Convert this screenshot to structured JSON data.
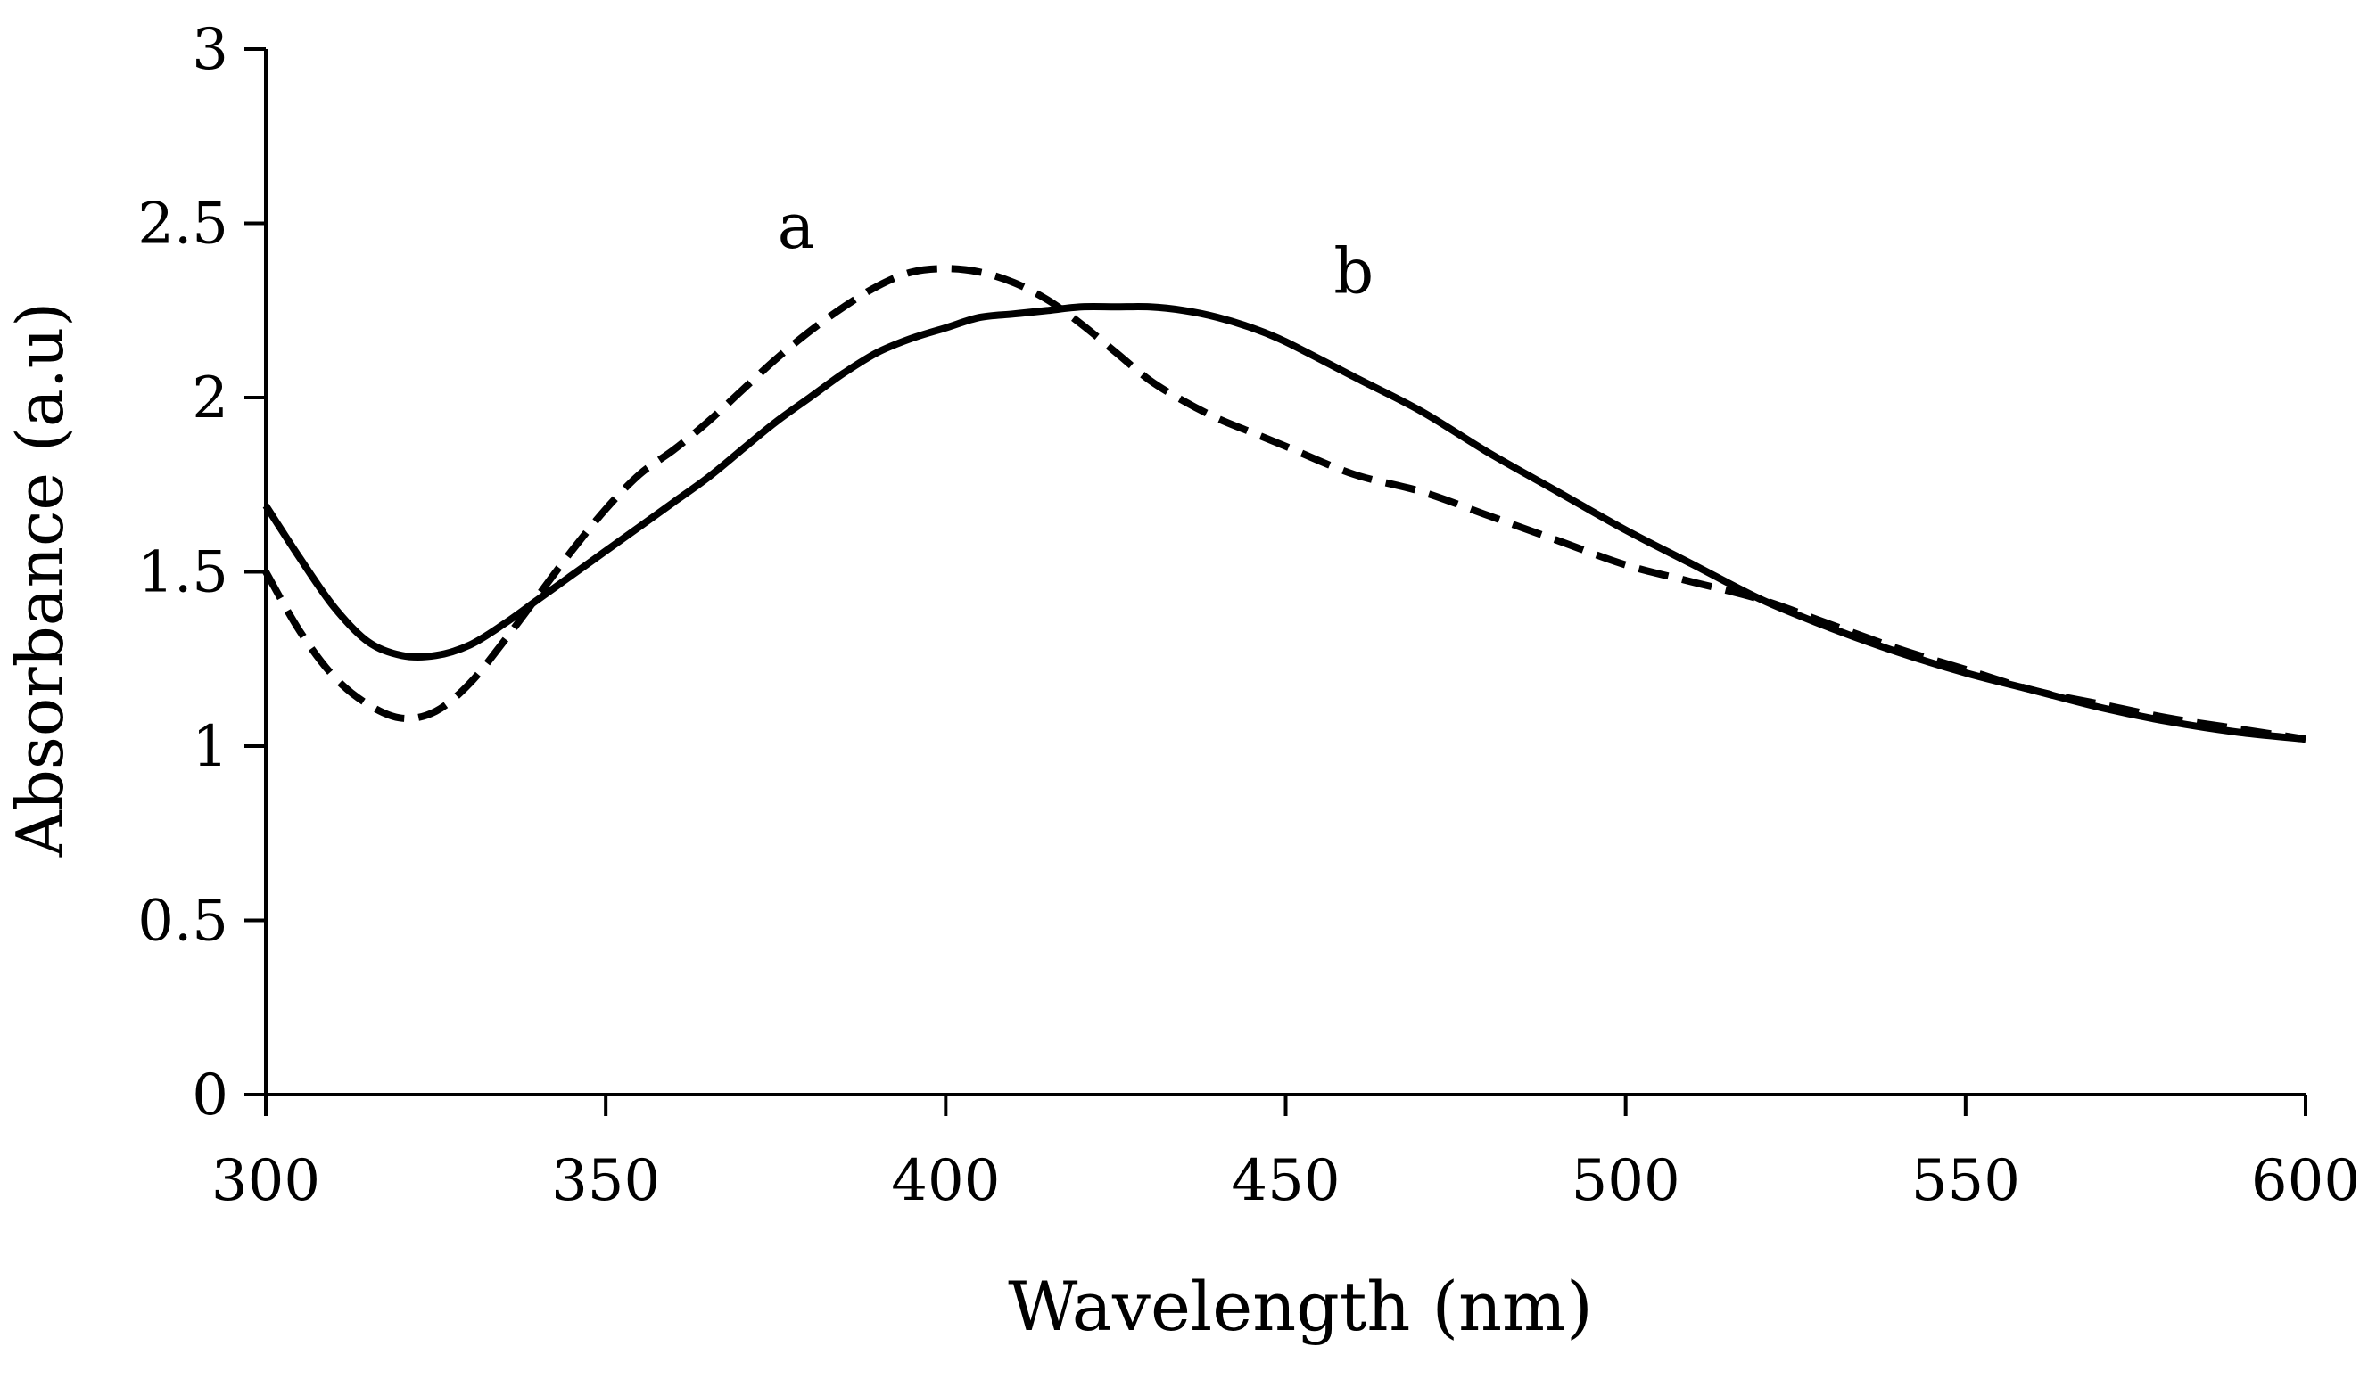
{
  "chart_data": {
    "type": "line",
    "title": "",
    "xlabel": "Wavelength (nm)",
    "ylabel": "Absorbance (a.u)",
    "xlim": [
      300,
      600
    ],
    "ylim": [
      0,
      3
    ],
    "x_ticks": [
      300,
      350,
      400,
      450,
      500,
      550,
      600
    ],
    "y_ticks": [
      0,
      0.5,
      1,
      1.5,
      2,
      2.5,
      3
    ],
    "x_tick_labels": [
      "300",
      "350",
      "400",
      "450",
      "500",
      "550",
      "600"
    ],
    "y_tick_labels": [
      "0",
      "0.5",
      "1",
      "1.5",
      "2",
      "2.5",
      "3"
    ],
    "grid": false,
    "series": [
      {
        "name": "a",
        "style": "dashed",
        "color": "#000000",
        "label_at": [
          378,
          2.43
        ],
        "x": [
          300,
          305,
          310,
          315,
          320,
          325,
          330,
          335,
          340,
          345,
          350,
          355,
          360,
          365,
          370,
          375,
          380,
          385,
          390,
          395,
          400,
          405,
          410,
          415,
          420,
          425,
          430,
          435,
          440,
          445,
          450,
          460,
          470,
          480,
          490,
          500,
          510,
          520,
          530,
          540,
          550,
          560,
          570,
          580,
          590,
          600
        ],
        "values": [
          1.5,
          1.33,
          1.2,
          1.12,
          1.08,
          1.1,
          1.18,
          1.3,
          1.43,
          1.56,
          1.68,
          1.78,
          1.85,
          1.93,
          2.02,
          2.11,
          2.19,
          2.26,
          2.32,
          2.36,
          2.37,
          2.36,
          2.33,
          2.28,
          2.21,
          2.13,
          2.05,
          1.99,
          1.94,
          1.9,
          1.86,
          1.78,
          1.73,
          1.66,
          1.59,
          1.52,
          1.47,
          1.42,
          1.35,
          1.28,
          1.22,
          1.16,
          1.12,
          1.08,
          1.05,
          1.02
        ]
      },
      {
        "name": "b",
        "style": "solid",
        "color": "#000000",
        "label_at": [
          460,
          2.3
        ],
        "x": [
          300,
          305,
          310,
          315,
          320,
          325,
          330,
          335,
          340,
          345,
          350,
          355,
          360,
          365,
          370,
          375,
          380,
          385,
          390,
          395,
          400,
          405,
          410,
          415,
          420,
          425,
          430,
          435,
          440,
          445,
          450,
          460,
          470,
          480,
          490,
          500,
          510,
          520,
          530,
          540,
          550,
          560,
          570,
          580,
          590,
          600
        ],
        "values": [
          1.69,
          1.54,
          1.4,
          1.3,
          1.26,
          1.26,
          1.29,
          1.35,
          1.42,
          1.49,
          1.56,
          1.63,
          1.7,
          1.77,
          1.85,
          1.93,
          2.0,
          2.07,
          2.13,
          2.17,
          2.2,
          2.23,
          2.24,
          2.25,
          2.26,
          2.26,
          2.26,
          2.25,
          2.23,
          2.2,
          2.16,
          2.06,
          1.96,
          1.84,
          1.73,
          1.62,
          1.52,
          1.42,
          1.34,
          1.27,
          1.21,
          1.16,
          1.11,
          1.07,
          1.04,
          1.02
        ]
      }
    ]
  }
}
